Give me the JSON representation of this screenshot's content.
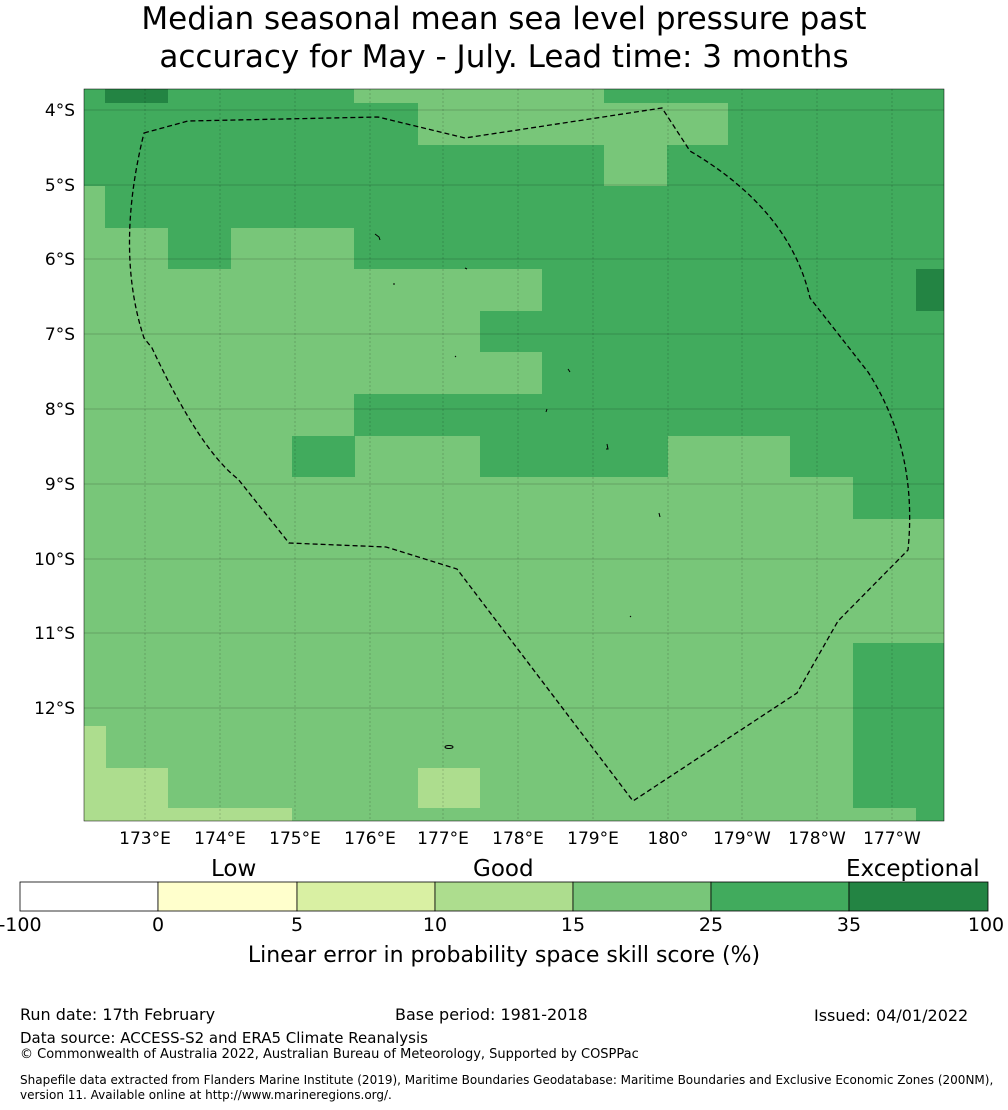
{
  "title_lines": [
    "Median seasonal mean sea level pressure past",
    "accuracy for May - July. Lead time: 3 months"
  ],
  "map": {
    "lon_labels": [
      "173°E",
      "174°E",
      "175°E",
      "176°E",
      "177°E",
      "178°E",
      "179°E",
      "180°",
      "179°W",
      "178°W",
      "177°W"
    ],
    "lat_labels": [
      "4°S",
      "5°S",
      "6°S",
      "7°S",
      "8°S",
      "9°S",
      "10°S",
      "11°S",
      "12°S"
    ],
    "colors": {
      "25-35": "#41ab5d",
      "15-25": "#78c679",
      "10-15": "#addd8e",
      "35-100": "#238443"
    },
    "legend_colors": [
      "#ffffff",
      "#ffffcc",
      "#d9f0a3",
      "#addd8e",
      "#78c679",
      "#41ab5d",
      "#238443"
    ]
  },
  "colorbar": {
    "categories": [
      "Low",
      "Good",
      "Exceptional"
    ],
    "ticks": [
      "-100",
      "0",
      "5",
      "10",
      "15",
      "25",
      "35",
      "100"
    ],
    "title": "Linear error in probability space skill score (%)"
  },
  "footer": {
    "run_date": "Run date: 17th February",
    "base_period": "Base period: 1981-2018",
    "issued": "Issued: 04/01/2022",
    "data_source": "Data source: ACCESS-S2 and ERA5 Climate Reanalysis",
    "copyright": "© Commonwealth of Australia 2022, Australian Bureau of Meteorology, Supported by COSPPac",
    "shapefile_line1": "Shapefile data extracted from Flanders Marine Institute (2019), Maritime Boundaries Geodatabase: Maritime Boundaries and Exclusive Economic Zones (200NM),",
    "shapefile_line2": "version 11. Available online at http://www.marineregions.org/."
  }
}
